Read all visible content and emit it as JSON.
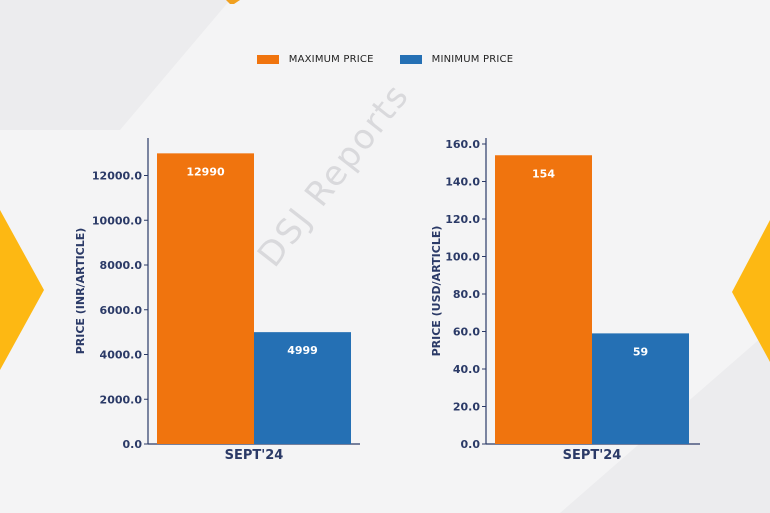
{
  "legend": {
    "max_label": "MAXIMUM PRICE",
    "min_label": "MINIMUM PRICE"
  },
  "watermark": "DSJ Reports",
  "colors": {
    "max": "#f0740e",
    "min": "#2570b4",
    "accent": "#fdb813",
    "axis": "#2b3a67"
  },
  "chart_data": [
    {
      "type": "bar",
      "categories": [
        "SEPT'24"
      ],
      "series": [
        {
          "name": "MAXIMUM PRICE",
          "values": [
            12990
          ]
        },
        {
          "name": "MINIMUM PRICE",
          "values": [
            4999
          ]
        }
      ],
      "ylabel": "PRICE (INR/ARTICLE)",
      "ylim": [
        0,
        13000
      ],
      "yticks": [
        "0.0",
        "2000.0",
        "4000.0",
        "6000.0",
        "8000.0",
        "10000.0",
        "12000.0"
      ],
      "data_labels": [
        "12990",
        "4999"
      ]
    },
    {
      "type": "bar",
      "categories": [
        "SEPT'24"
      ],
      "series": [
        {
          "name": "MAXIMUM PRICE",
          "values": [
            154
          ]
        },
        {
          "name": "MINIMUM PRICE",
          "values": [
            59
          ]
        }
      ],
      "ylabel": "PRICE (USD/ARTICLE)",
      "ylim": [
        0,
        160
      ],
      "yticks": [
        "0.0",
        "20.0",
        "40.0",
        "60.0",
        "80.0",
        "100.0",
        "120.0",
        "140.0",
        "160.0"
      ],
      "data_labels": [
        "154",
        "59"
      ]
    }
  ]
}
